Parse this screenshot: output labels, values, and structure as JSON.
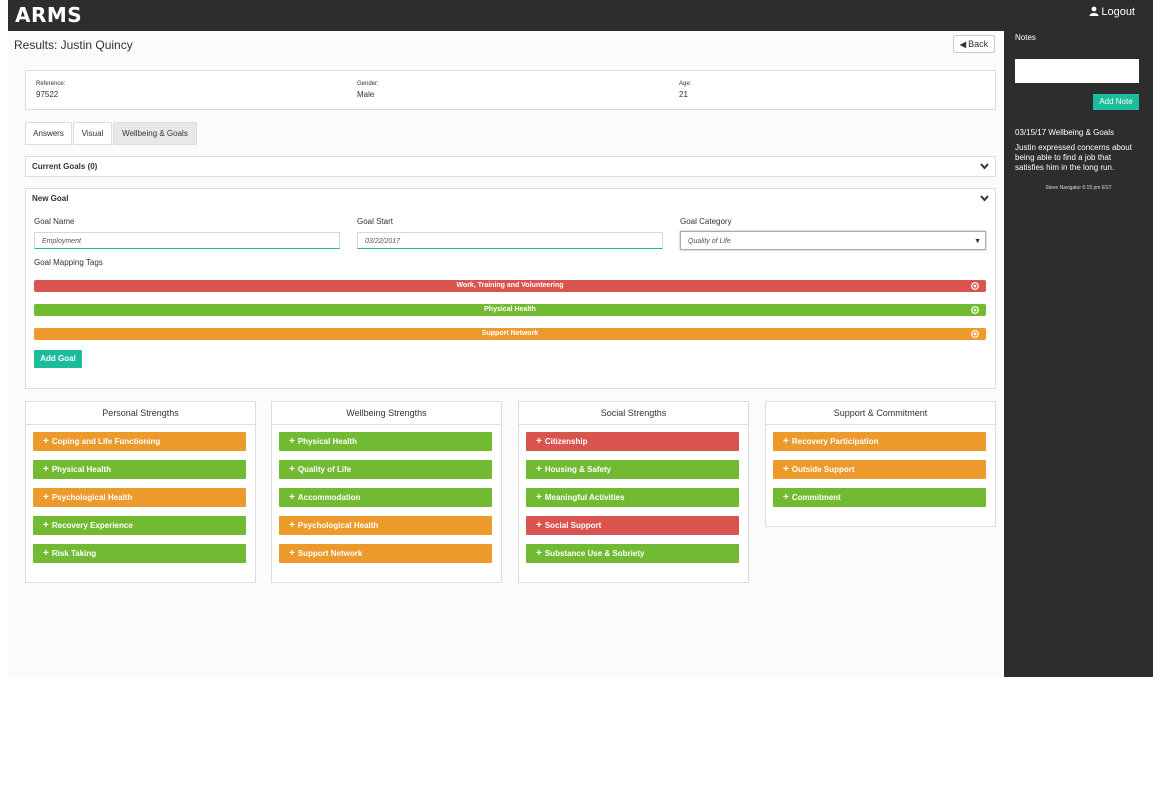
{
  "app": {
    "title": "ARMS",
    "logout_label": "Logout"
  },
  "page": {
    "title": "Results: Justin Quincy",
    "back_label": "Back"
  },
  "info": {
    "reference_label": "Reference:",
    "reference": "97522",
    "gender_label": "Gender:",
    "gender": "Male",
    "age_label": "Age:",
    "age": "21"
  },
  "tabs": [
    {
      "label": "Answers"
    },
    {
      "label": "Visual"
    },
    {
      "label": "Wellbeing & Goals",
      "active": true
    }
  ],
  "current_goals": {
    "label": "Current Goals (0)"
  },
  "new_goal": {
    "label": "New Goal",
    "name_label": "Goal Name",
    "name_value": "Employment",
    "start_label": "Goal Start",
    "start_value": "03/22/2017",
    "category_label": "Goal Category",
    "category_value": "Quality of Life",
    "tags_label": "Goal Mapping Tags",
    "tags": [
      {
        "label": "Work, Training and Volunteering",
        "color": "#d9534f"
      },
      {
        "label": "Physical Health",
        "color": "#72ba32"
      },
      {
        "label": "Support Network",
        "color": "#eb9a2b"
      }
    ],
    "add_label": "Add Goal"
  },
  "strengths": [
    {
      "title": "Personal Strengths",
      "items": [
        {
          "label": "Coping and Life Functioning",
          "status": "orange"
        },
        {
          "label": "Physical Health",
          "status": "green"
        },
        {
          "label": "Psychological Health",
          "status": "orange"
        },
        {
          "label": "Recovery Experience",
          "status": "green"
        },
        {
          "label": "Risk Taking",
          "status": "green"
        }
      ]
    },
    {
      "title": "Wellbeing Strengths",
      "items": [
        {
          "label": "Physical Health",
          "status": "green"
        },
        {
          "label": "Quality of Life",
          "status": "green"
        },
        {
          "label": "Accommodation",
          "status": "green"
        },
        {
          "label": "Psychological Health",
          "status": "orange"
        },
        {
          "label": "Support Network",
          "status": "orange"
        }
      ]
    },
    {
      "title": "Social Strengths",
      "items": [
        {
          "label": "Citizenship",
          "status": "red"
        },
        {
          "label": "Housing & Safety",
          "status": "green"
        },
        {
          "label": "Meaningful Activities",
          "status": "green"
        },
        {
          "label": "Social Support",
          "status": "red"
        },
        {
          "label": "Substance Use & Sobriety",
          "status": "green"
        }
      ]
    },
    {
      "title": "Support & Commitment",
      "items": [
        {
          "label": "Recovery Participation",
          "status": "orange"
        },
        {
          "label": "Outside Support",
          "status": "orange"
        },
        {
          "label": "Commitment",
          "status": "green"
        }
      ]
    }
  ],
  "notes": {
    "title": "Notes",
    "add_label": "Add Note",
    "entry": {
      "heading": "03/15/17 Wellbeing & Goals",
      "text": "Justin  expressed concerns about being able to find a job that satisfies him in the long run.",
      "meta": "Steve Navigator 6:15 pm EST"
    }
  }
}
